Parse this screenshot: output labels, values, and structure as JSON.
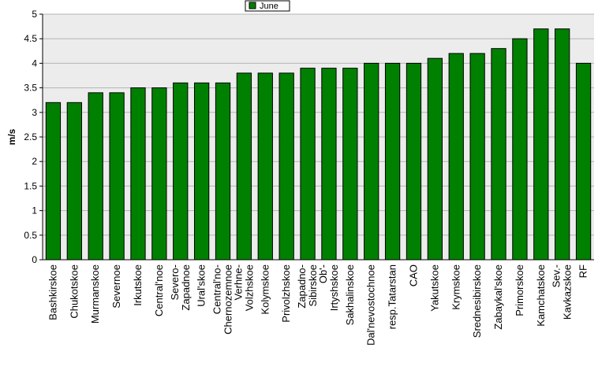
{
  "chart_data": {
    "type": "bar",
    "title": "",
    "xlabel": "",
    "ylabel": "m/s",
    "ylim": [
      0,
      5
    ],
    "yticks": [
      0,
      0.5,
      1,
      1.5,
      2,
      2.5,
      3,
      3.5,
      4,
      4.5,
      5
    ],
    "grid": true,
    "legend_position": "top-center",
    "categories": [
      "Bashkirskoe",
      "Chukotskoe",
      "Murmanskoe",
      "Severnoe",
      "Irkutskoe",
      "Central'noe",
      "Severo-Zapadnoe",
      "Ural'skoe",
      "Central'no-Chernozemnoe",
      "Verhne-Volzhskoe",
      "Kolymskoe",
      "Privolzhskoe",
      "Zapadno-Sibirskoe",
      "Ob'-Irtyshskoe",
      "Sakhalinskoe",
      "Dal'nevostochnoe",
      "resp.Tatarstan",
      "CAO",
      "Yakutskoe",
      "Krymskoe",
      "Srednesibirskoe",
      "Zabaykal'skoe",
      "Primorskoe",
      "Kamchatskoe",
      "Sev.-Kavkazskoe",
      "RF"
    ],
    "category_lines": [
      [
        "Bashkirskoe"
      ],
      [
        "Chukotskoe"
      ],
      [
        "Murmanskoe"
      ],
      [
        "Severnoe"
      ],
      [
        "Irkutskoe"
      ],
      [
        "Central'noe"
      ],
      [
        "Severo-",
        "Zapadnoe"
      ],
      [
        "Ural'skoe"
      ],
      [
        "Central'no-",
        "Chernozemnoe"
      ],
      [
        "Verhne-",
        "Volzhskoe"
      ],
      [
        "Kolymskoe"
      ],
      [
        "Privolzhskoe"
      ],
      [
        "Zapadno-",
        "Sibirskoe"
      ],
      [
        "Ob'-",
        "Irtyshskoe"
      ],
      [
        "Sakhalinskoe"
      ],
      [
        "Dal'nevostochnoe"
      ],
      [
        "resp.Tatarstan"
      ],
      [
        "CAO"
      ],
      [
        "Yakutskoe"
      ],
      [
        "Krymskoe"
      ],
      [
        "Srednesibirskoe"
      ],
      [
        "Zabaykal'skoe"
      ],
      [
        "Primorskoe"
      ],
      [
        "Kamchatskoe"
      ],
      [
        "Sev.-",
        "Kavkazskoe"
      ],
      [
        "RF"
      ]
    ],
    "series": [
      {
        "name": "June",
        "color": "#008000",
        "values": [
          3.2,
          3.2,
          3.4,
          3.4,
          3.5,
          3.5,
          3.6,
          3.6,
          3.6,
          3.8,
          3.8,
          3.8,
          3.9,
          3.9,
          3.9,
          4.0,
          4.0,
          4.0,
          4.1,
          4.2,
          4.2,
          4.3,
          4.5,
          4.7,
          4.7,
          4.0
        ]
      }
    ],
    "colors": {
      "plot_bg": "#ececec",
      "grid": "#b4b4b4",
      "bar_stroke": "#000000"
    }
  }
}
